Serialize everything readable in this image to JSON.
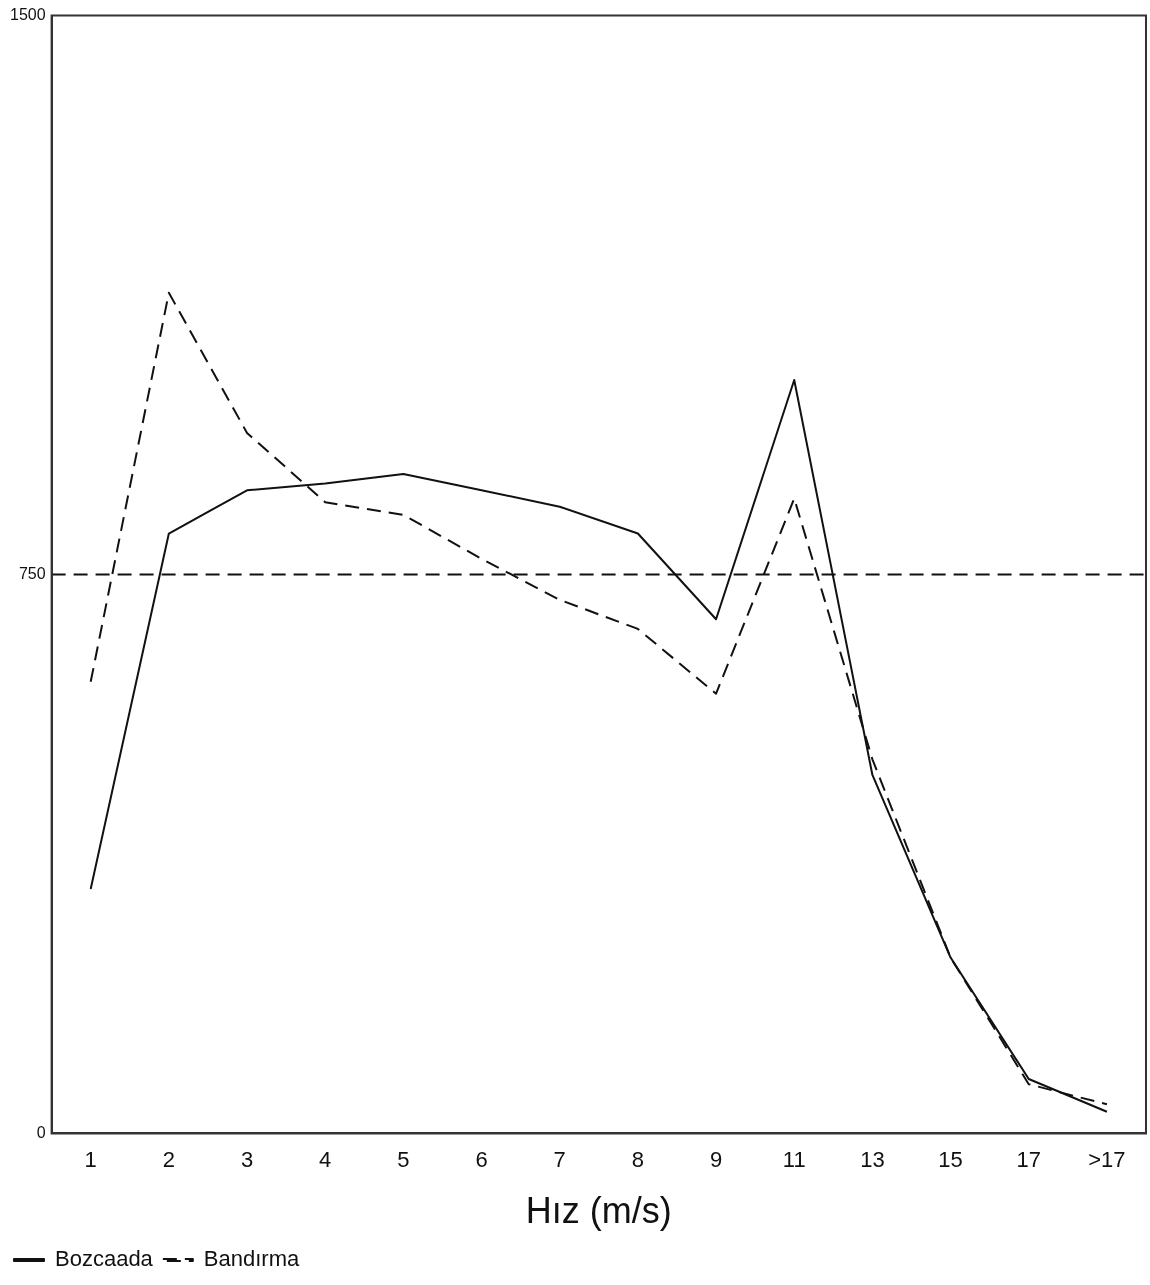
{
  "chart_data": {
    "type": "line",
    "xlabel": "Hız (m/s)",
    "categories": [
      "1",
      "2",
      "3",
      "4",
      "5",
      "6",
      "7",
      "8",
      "9",
      "11",
      "13",
      "15",
      "17",
      ">17"
    ],
    "series": [
      {
        "name": "Bozcaada",
        "color": "#111111",
        "line_style": "solid",
        "values": [
          328,
          805,
          863,
          872,
          885,
          863,
          841,
          805,
          690,
          1011,
          481,
          236,
          73,
          29
        ]
      },
      {
        "name": "Bandırma",
        "color": "#111111",
        "line_style": "dashed",
        "values": [
          606,
          1128,
          940,
          847,
          830,
          771,
          716,
          677,
          590,
          852,
          502,
          236,
          66,
          39
        ]
      }
    ],
    "ylim": [
      0,
      1500
    ],
    "yticks": [
      0,
      750,
      1500
    ],
    "ref_lines": [
      {
        "axis": "y",
        "value": 750,
        "line_style": "dashed",
        "color": "#111111"
      }
    ],
    "grid": false,
    "legend": "bottom left",
    "marker": "none"
  }
}
